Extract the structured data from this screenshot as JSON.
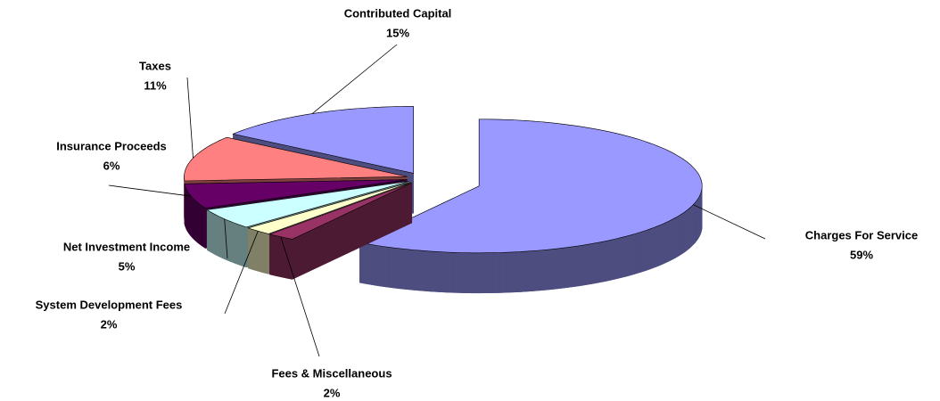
{
  "chart_data": {
    "type": "pie3d",
    "categories": [
      "Charges For Service",
      "Fees & Miscellaneous",
      "System Development Fees",
      "Net Investment Income",
      "Insurance Proceeds",
      "Taxes",
      "Contributed Capital"
    ],
    "values": [
      59,
      2,
      2,
      5,
      6,
      11,
      15
    ],
    "value_labels": [
      "59%",
      "2%",
      "2%",
      "5%",
      "6%",
      "11%",
      "15%"
    ],
    "colors": [
      "#9999ff",
      "#993366",
      "#ffffcc",
      "#ccffff",
      "#660066",
      "#ff8080",
      "#9999ff"
    ]
  }
}
